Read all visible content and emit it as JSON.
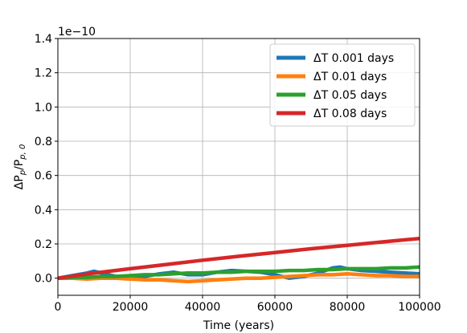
{
  "chart_data": {
    "type": "line",
    "xlabel": "Time (years)",
    "ylabel": "ΔPp/Pp,0",
    "ylabel_parts": {
      "delta": "ΔP",
      "sub1": "p",
      "slash": "/P",
      "sub2": "p, 0"
    },
    "y_offset_label": "1e−10",
    "xlim": [
      0,
      100000
    ],
    "ylim": [
      -0.1,
      1.4
    ],
    "x_ticks": [
      0,
      20000,
      40000,
      60000,
      80000,
      100000
    ],
    "x_tick_labels": [
      "0",
      "20000",
      "40000",
      "60000",
      "80000",
      "100000"
    ],
    "y_ticks": [
      0.0,
      0.2,
      0.4,
      0.6,
      0.8,
      1.0,
      1.2,
      1.4
    ],
    "y_tick_labels": [
      "0.0",
      "0.2",
      "0.4",
      "0.6",
      "0.8",
      "1.0",
      "1.2",
      "1.4"
    ],
    "grid": true,
    "legend_position": "top-right",
    "series": [
      {
        "name": "ΔT 0.001 days",
        "color": "#1f77b4",
        "x": [
          0,
          4000,
          8000,
          10000,
          12000,
          16000,
          20000,
          24000,
          28000,
          32000,
          36000,
          40000,
          44000,
          48000,
          52000,
          56000,
          60000,
          64000,
          68000,
          72000,
          76000,
          78000,
          80000,
          84000,
          88000,
          92000,
          96000,
          100000
        ],
        "y": [
          0.0,
          0.015,
          0.03,
          0.04,
          0.03,
          0.01,
          0.0,
          0.01,
          0.025,
          0.035,
          0.02,
          0.02,
          0.035,
          0.045,
          0.04,
          0.035,
          0.02,
          0.0,
          0.01,
          0.03,
          0.06,
          0.065,
          0.055,
          0.045,
          0.04,
          0.035,
          0.03,
          0.025
        ]
      },
      {
        "name": "ΔT 0.01 days",
        "color": "#ff7f0e",
        "x": [
          0,
          4000,
          8000,
          12000,
          16000,
          20000,
          24000,
          28000,
          32000,
          36000,
          40000,
          44000,
          48000,
          52000,
          56000,
          60000,
          64000,
          68000,
          72000,
          76000,
          80000,
          84000,
          88000,
          92000,
          96000,
          100000
        ],
        "y": [
          0.0,
          0.0,
          -0.005,
          0.0,
          0.0,
          -0.005,
          -0.01,
          -0.01,
          -0.015,
          -0.02,
          -0.015,
          -0.01,
          -0.005,
          0.0,
          0.0,
          0.005,
          0.01,
          0.015,
          0.02,
          0.02,
          0.025,
          0.02,
          0.015,
          0.015,
          0.01,
          0.01
        ]
      },
      {
        "name": "ΔT 0.05 days",
        "color": "#2ca02c",
        "x": [
          0,
          4000,
          8000,
          12000,
          16000,
          20000,
          24000,
          28000,
          32000,
          36000,
          40000,
          44000,
          48000,
          52000,
          56000,
          60000,
          64000,
          68000,
          72000,
          76000,
          80000,
          84000,
          88000,
          92000,
          96000,
          100000
        ],
        "y": [
          0.0,
          0.005,
          0.005,
          0.01,
          0.01,
          0.015,
          0.02,
          0.02,
          0.025,
          0.03,
          0.03,
          0.035,
          0.035,
          0.04,
          0.04,
          0.04,
          0.045,
          0.045,
          0.05,
          0.05,
          0.055,
          0.055,
          0.055,
          0.06,
          0.06,
          0.065
        ]
      },
      {
        "name": "ΔT 0.08 days",
        "color": "#d62728",
        "x": [
          0,
          10000,
          20000,
          30000,
          40000,
          50000,
          60000,
          70000,
          80000,
          90000,
          100000
        ],
        "y": [
          0.0,
          0.03,
          0.055,
          0.08,
          0.105,
          0.128,
          0.15,
          0.172,
          0.192,
          0.212,
          0.232
        ]
      }
    ]
  }
}
